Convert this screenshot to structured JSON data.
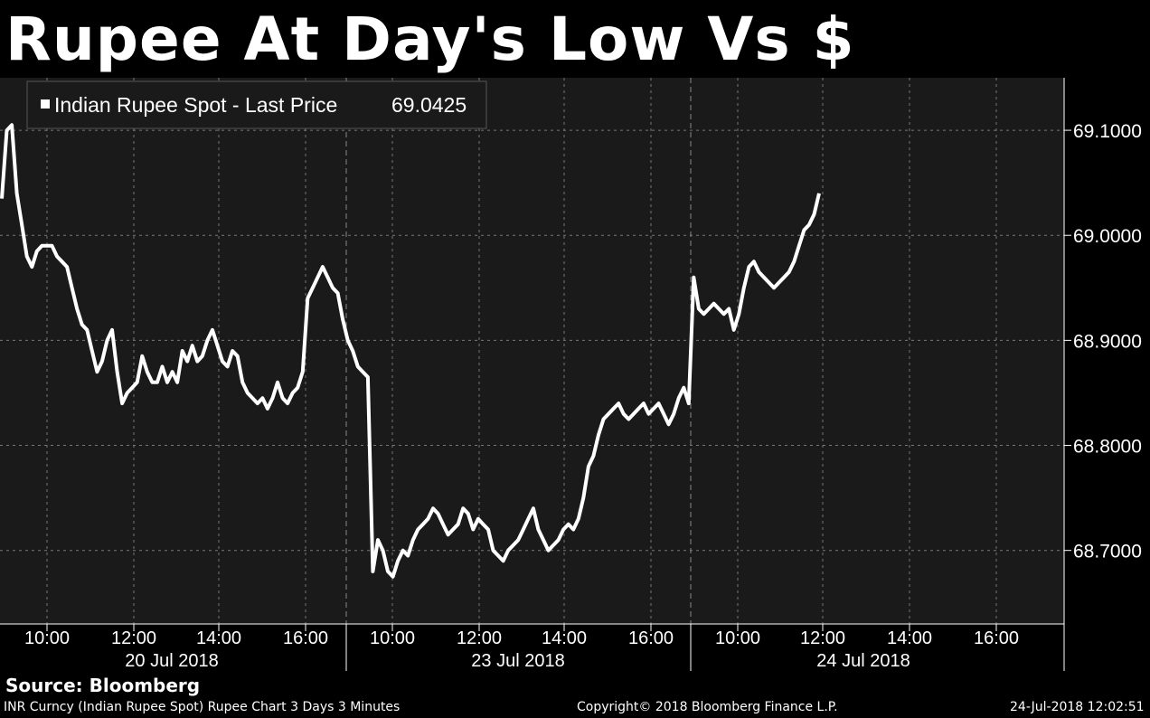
{
  "title": "Rupee At Day's Low Vs $",
  "legend": {
    "label": "Indian Rupee Spot - Last Price",
    "value": "69.0425"
  },
  "source": "Source: Bloomberg",
  "footer": {
    "left": "INR Curncy (Indian Rupee Spot) Rupee Chart 3 Days 3 Minutes",
    "center": "Copyright© 2018 Bloomberg Finance L.P.",
    "right": "24-Jul-2018 12:02:51"
  },
  "colors": {
    "background": "#000000",
    "plot": "#1a1a1a",
    "line": "#ffffff",
    "grid": "#777777"
  },
  "chart_data": {
    "type": "line",
    "series": [
      {
        "name": "Indian Rupee Spot - Last Price",
        "values": [
          69.035,
          69.1,
          69.105,
          69.04,
          69.01,
          68.98,
          68.97,
          68.985,
          68.99,
          68.99,
          68.99,
          68.98,
          68.975,
          68.97,
          68.95,
          68.93,
          68.915,
          68.91,
          68.89,
          68.87,
          68.88,
          68.9,
          68.91,
          68.87,
          68.84,
          68.85,
          68.855,
          68.86,
          68.885,
          68.87,
          68.86,
          68.86,
          68.875,
          68.86,
          68.87,
          68.86,
          68.89,
          68.88,
          68.895,
          68.88,
          68.885,
          68.9,
          68.91,
          68.895,
          68.88,
          68.875,
          68.89,
          68.885,
          68.86,
          68.85,
          68.845,
          68.84,
          68.845,
          68.835,
          68.845,
          68.86,
          68.845,
          68.84,
          68.85,
          68.855,
          68.87,
          68.94,
          68.95,
          68.96,
          68.97,
          68.96,
          68.95,
          68.945,
          68.92,
          68.9,
          68.89,
          68.875,
          68.87,
          68.865,
          68.68,
          68.71,
          68.7,
          68.68,
          68.675,
          68.69,
          68.7,
          68.695,
          68.71,
          68.72,
          68.725,
          68.73,
          68.74,
          68.735,
          68.725,
          68.715,
          68.72,
          68.725,
          68.74,
          68.735,
          68.72,
          68.73,
          68.725,
          68.72,
          68.7,
          68.695,
          68.69,
          68.7,
          68.705,
          68.71,
          68.72,
          68.73,
          68.74,
          68.72,
          68.71,
          68.7,
          68.705,
          68.71,
          68.72,
          68.725,
          68.72,
          68.73,
          68.75,
          68.78,
          68.79,
          68.81,
          68.825,
          68.83,
          68.835,
          68.84,
          68.83,
          68.825,
          68.83,
          68.835,
          68.84,
          68.83,
          68.835,
          68.84,
          68.83,
          68.82,
          68.83,
          68.845,
          68.855,
          68.84,
          68.96,
          68.93,
          68.925,
          68.93,
          68.935,
          68.93,
          68.925,
          68.93,
          68.91,
          68.925,
          68.95,
          68.97,
          68.975,
          68.965,
          68.96,
          68.955,
          68.95,
          68.955,
          68.96,
          68.965,
          68.975,
          68.99,
          69.005,
          69.01,
          69.02,
          69.04
        ]
      }
    ],
    "ylim": [
      68.63,
      69.15
    ],
    "y_ticks": [
      "68.7000",
      "68.8000",
      "68.9000",
      "69.0000",
      "69.1000"
    ],
    "x_ticks": [
      "10:00",
      "12:00",
      "14:00",
      "16:00",
      "10:00",
      "12:00",
      "14:00",
      "16:00",
      "10:00",
      "12:00",
      "14:00",
      "16:00"
    ],
    "date_labels": [
      "20 Jul 2018",
      "23 Jul 2018",
      "24 Jul 2018"
    ],
    "grid": true,
    "legend_position": "top-left"
  }
}
